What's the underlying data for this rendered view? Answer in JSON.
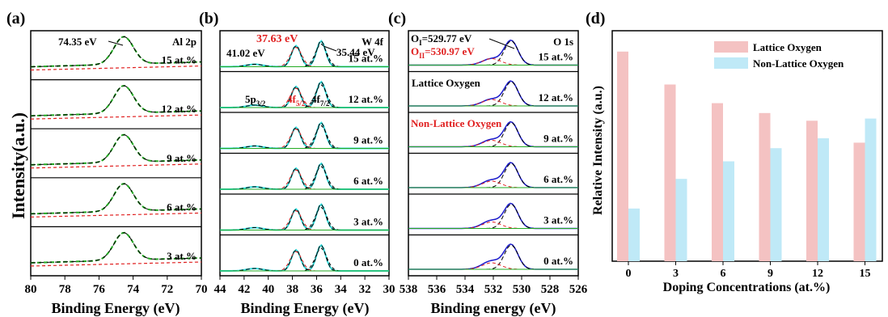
{
  "panel_labels": [
    "(a)",
    "(b)",
    "(c)",
    "(d)"
  ],
  "y_label_abc": "Intensity(a.u.)",
  "panel_a": {
    "tag": "Al 2p",
    "peak_label": "74.35 eV",
    "rows": [
      "15 at.%",
      "12 at.%",
      "9 at.%",
      "6 at.%",
      "3 at.%"
    ],
    "xlabel": "Binding Energy (eV)",
    "ticks": [
      "80",
      "78",
      "76",
      "74",
      "72",
      "70"
    ]
  },
  "panel_b": {
    "tag": "W 4f",
    "peak1": "37.63 eV",
    "peak2": "35.44 eV",
    "peak3": "41.02 eV",
    "p5": "5p",
    "p5_sub": "3/2",
    "f5": "4f",
    "f5_sub": "5/2",
    "f7": "4f",
    "f7_sub": "7/2",
    "rows": [
      "15 at.%",
      "12 at.%",
      "9 at.%",
      "6 at.%",
      "3 at.%",
      "0 at.%"
    ],
    "xlabel": "Binding Energy (eV)",
    "ticks": [
      "44",
      "42",
      "40",
      "38",
      "36",
      "34",
      "32",
      "30"
    ]
  },
  "panel_c": {
    "tag": "O 1s",
    "oi_main": "O",
    "oi_sub": "I",
    "oi_val": "=529.77 eV",
    "oii_main": "O",
    "oii_sub": "II",
    "oii_val": "=530.97 eV",
    "lattice": "Lattice Oxygen",
    "nonlattice": "Non-Lattice Oxygen",
    "rows": [
      "15 at.%",
      "12 at.%",
      "9 at.%",
      "6 at.%",
      "3 at.%",
      "0 at.%"
    ],
    "xlabel": "Binding energy (eV)",
    "ticks": [
      "538",
      "536",
      "534",
      "532",
      "530",
      "528",
      "526"
    ]
  },
  "colors": {
    "lattice": "#f4c2c2",
    "nonlattice": "#bfe9f7",
    "red": "#e02020",
    "green": "#22aa22",
    "cyan": "#33dddd",
    "blue": "#1a1acc"
  },
  "chart_data": {
    "type": "bar",
    "categories": [
      "0",
      "3",
      "6",
      "9",
      "12",
      "15"
    ],
    "series": [
      {
        "name": "Lattice Oxygen",
        "values": [
          0.955,
          0.805,
          0.72,
          0.675,
          0.64,
          0.54
        ]
      },
      {
        "name": "Non-Lattice Oxygen",
        "values": [
          0.24,
          0.375,
          0.455,
          0.515,
          0.56,
          0.65
        ]
      }
    ],
    "xlabel": "Doping Concentrations (at.%)",
    "ylabel": "Relative Intensity (a.u.)",
    "ylim": [
      0,
      1.05
    ],
    "legend": "top-right"
  }
}
